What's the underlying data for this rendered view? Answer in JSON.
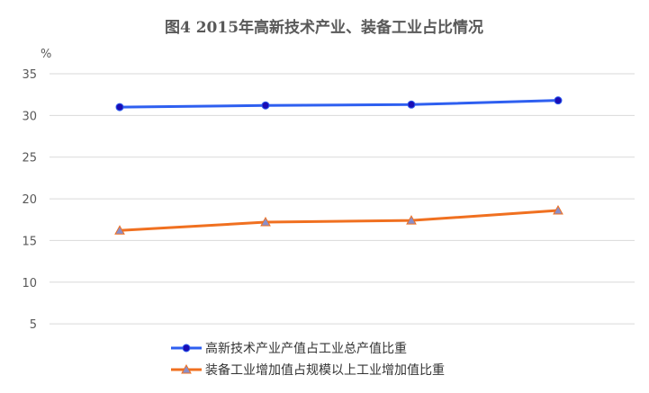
{
  "chart_data": {
    "type": "line",
    "title": "图4 2015年高新技术产业、装备工业占比情况",
    "ylabel": "%",
    "xlabel": "",
    "ylim": [
      0,
      35
    ],
    "yticks": [
      "5",
      "10",
      "15",
      "20",
      "25",
      "30",
      "35"
    ],
    "grid": true,
    "legend_position": "bottom",
    "series": [
      {
        "name": "高新技术产业产值占工业总产值比重",
        "color": "#2e5ff0",
        "marker": "circle",
        "marker_color": "#1a0db5",
        "values": [
          31.0,
          31.2,
          31.3,
          31.8
        ]
      },
      {
        "name": "装备工业增加值占规模以上工业增加值比重",
        "color": "#f07020",
        "marker": "triangle",
        "marker_color": "#8a8fc9",
        "values": [
          16.2,
          17.2,
          17.4,
          18.6
        ]
      }
    ]
  }
}
